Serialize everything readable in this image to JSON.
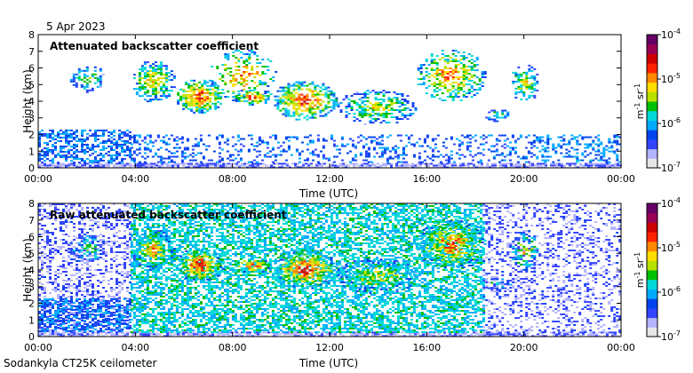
{
  "header": {
    "date": "5 Apr 2023"
  },
  "footer": {
    "instrument": "Sodankyla CT25K ceilometer"
  },
  "colorscale": [
    "#e6e6e6",
    "#b3b3ff",
    "#3344ff",
    "#0044ee",
    "#00aaff",
    "#00d8d8",
    "#00c000",
    "#b8e000",
    "#ffdd00",
    "#ff8800",
    "#ff2200",
    "#cc0000",
    "#990055",
    "#660066"
  ],
  "chart_data": [
    {
      "type": "heatmap",
      "title": "Attenuated backscatter coefficient",
      "xlabel": "Time (UTC)",
      "ylabel": "Height (km)",
      "xlim": [
        0,
        24
      ],
      "ylim": [
        0,
        8
      ],
      "x_ticks": [
        "00:00",
        "04:00",
        "08:00",
        "12:00",
        "16:00",
        "20:00",
        "00:00"
      ],
      "y_ticks": [
        "0",
        "1",
        "2",
        "3",
        "4",
        "5",
        "6",
        "7",
        "8"
      ],
      "grid": false,
      "colorbar": {
        "scale": "log",
        "range": [
          1e-07,
          0.0001
        ],
        "label": "m-1 sr-1",
        "ticks": [
          "10-7",
          "10-6",
          "10-5",
          "10-4"
        ]
      },
      "features": [
        {
          "kind": "noise",
          "t": [
            0,
            24
          ],
          "h": [
            0,
            0.3
          ],
          "level": 0.02,
          "density": 0.8
        },
        {
          "kind": "noise",
          "t": [
            0,
            3.8
          ],
          "h": [
            0.3,
            2.3
          ],
          "level": 0.18,
          "density": 0.55
        },
        {
          "kind": "noise",
          "t": [
            3.8,
            20.5
          ],
          "h": [
            0.3,
            2.0
          ],
          "level": 0.16,
          "density": 0.25
        },
        {
          "kind": "noise",
          "t": [
            20.5,
            24
          ],
          "h": [
            0.3,
            2.0
          ],
          "level": 0.2,
          "density": 0.35
        },
        {
          "kind": "cloud",
          "t": [
            1.2,
            2.8
          ],
          "h": [
            4.5,
            6.2
          ],
          "level": 0.42,
          "density": 0.55
        },
        {
          "kind": "cloud",
          "t": [
            3.8,
            5.6
          ],
          "h": [
            4.0,
            6.5
          ],
          "level": 0.6,
          "density": 0.7
        },
        {
          "kind": "cloud",
          "t": [
            5.6,
            7.6
          ],
          "h": [
            3.3,
            5.4
          ],
          "level": 0.72,
          "density": 0.8
        },
        {
          "kind": "cloud",
          "t": [
            7.0,
            9.8
          ],
          "h": [
            4.0,
            7.2
          ],
          "level": 0.66,
          "density": 0.35
        },
        {
          "kind": "cloud",
          "t": [
            8.0,
            9.6
          ],
          "h": [
            3.8,
            4.8
          ],
          "level": 0.7,
          "density": 0.7
        },
        {
          "kind": "cloud",
          "t": [
            9.6,
            12.3
          ],
          "h": [
            2.9,
            5.3
          ],
          "level": 0.72,
          "density": 0.72
        },
        {
          "kind": "cloud",
          "t": [
            12.2,
            15.6
          ],
          "h": [
            2.6,
            4.8
          ],
          "level": 0.52,
          "density": 0.55
        },
        {
          "kind": "cloud",
          "t": [
            15.5,
            18.4
          ],
          "h": [
            4.0,
            7.2
          ],
          "level": 0.66,
          "density": 0.62
        },
        {
          "kind": "cloud",
          "t": [
            18.3,
            19.4
          ],
          "h": [
            2.8,
            3.6
          ],
          "level": 0.42,
          "density": 0.55
        },
        {
          "kind": "cloud",
          "t": [
            19.4,
            20.6
          ],
          "h": [
            4.0,
            6.3
          ],
          "level": 0.55,
          "density": 0.55
        }
      ]
    },
    {
      "type": "heatmap",
      "title": "Raw attenuated backscatter coefficient",
      "xlabel": "Time (UTC)",
      "ylabel": "Height (km)",
      "xlim": [
        0,
        24
      ],
      "ylim": [
        0,
        8
      ],
      "x_ticks": [
        "00:00",
        "04:00",
        "08:00",
        "12:00",
        "16:00",
        "20:00",
        "00:00"
      ],
      "y_ticks": [
        "0",
        "1",
        "2",
        "3",
        "4",
        "5",
        "6",
        "7",
        "8"
      ],
      "grid": false,
      "colorbar": {
        "scale": "log",
        "range": [
          1e-07,
          0.0001
        ],
        "label": "m-1 sr-1",
        "ticks": [
          "10-7",
          "10-6",
          "10-5",
          "10-4"
        ]
      },
      "features": [
        {
          "kind": "noise",
          "t": [
            0,
            24
          ],
          "h": [
            0,
            0.3
          ],
          "level": 0.02,
          "density": 0.8
        },
        {
          "kind": "noise",
          "t": [
            0,
            3.8
          ],
          "h": [
            0.3,
            8.0
          ],
          "level": 0.05,
          "density": 0.35
        },
        {
          "kind": "noise",
          "t": [
            3.8,
            18.3
          ],
          "h": [
            0.3,
            8.0
          ],
          "level": 0.3,
          "density": 0.6
        },
        {
          "kind": "noise",
          "t": [
            18.3,
            24
          ],
          "h": [
            0.3,
            8.0
          ],
          "level": 0.05,
          "density": 0.3
        },
        {
          "kind": "noise",
          "t": [
            0,
            3.8
          ],
          "h": [
            0.3,
            2.3
          ],
          "level": 0.18,
          "density": 0.55
        },
        {
          "kind": "cloud",
          "t": [
            1.2,
            2.8
          ],
          "h": [
            4.5,
            6.2
          ],
          "level": 0.42,
          "density": 0.55
        },
        {
          "kind": "cloud",
          "t": [
            3.8,
            5.6
          ],
          "h": [
            4.0,
            6.5
          ],
          "level": 0.6,
          "density": 0.7
        },
        {
          "kind": "cloud",
          "t": [
            5.6,
            7.6
          ],
          "h": [
            3.3,
            5.4
          ],
          "level": 0.72,
          "density": 0.8
        },
        {
          "kind": "cloud",
          "t": [
            8.0,
            9.6
          ],
          "h": [
            3.8,
            4.8
          ],
          "level": 0.7,
          "density": 0.7
        },
        {
          "kind": "cloud",
          "t": [
            9.6,
            12.3
          ],
          "h": [
            2.9,
            5.3
          ],
          "level": 0.72,
          "density": 0.72
        },
        {
          "kind": "cloud",
          "t": [
            12.2,
            15.6
          ],
          "h": [
            2.6,
            4.8
          ],
          "level": 0.52,
          "density": 0.55
        },
        {
          "kind": "cloud",
          "t": [
            15.5,
            18.4
          ],
          "h": [
            4.0,
            7.2
          ],
          "level": 0.66,
          "density": 0.62
        },
        {
          "kind": "cloud",
          "t": [
            18.3,
            19.4
          ],
          "h": [
            2.8,
            3.6
          ],
          "level": 0.42,
          "density": 0.55
        },
        {
          "kind": "cloud",
          "t": [
            19.4,
            20.6
          ],
          "h": [
            4.0,
            6.3
          ],
          "level": 0.55,
          "density": 0.55
        }
      ]
    }
  ]
}
